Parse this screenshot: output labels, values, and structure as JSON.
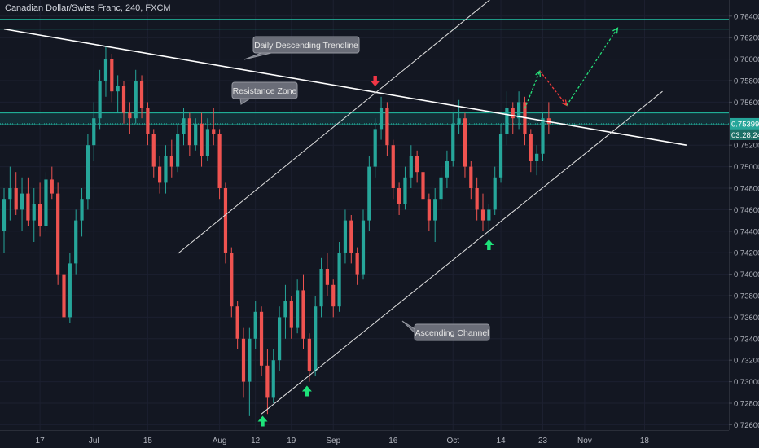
{
  "chart_data": {
    "type": "candlestick",
    "title": "Canadian Dollar/Swiss Franc, 240, FXCM",
    "y_ticks": [
      "0.76400",
      "0.76200",
      "0.76000",
      "0.75800",
      "0.75600",
      "0.75200",
      "0.75000",
      "0.74800",
      "0.74600",
      "0.74400",
      "0.74200",
      "0.74000",
      "0.73800",
      "0.73600",
      "0.73400",
      "0.73200",
      "0.73000",
      "0.72800",
      "0.72600"
    ],
    "ylim": [
      0.7255,
      0.7655
    ],
    "x_ticks": [
      {
        "label": "17",
        "index": 6
      },
      {
        "label": "Jul",
        "index": 15
      },
      {
        "label": "15",
        "index": 24
      },
      {
        "label": "Aug",
        "index": 36
      },
      {
        "label": "12",
        "index": 42
      },
      {
        "label": "19",
        "index": 48
      },
      {
        "label": "Sep",
        "index": 55
      },
      {
        "label": "16",
        "index": 65
      },
      {
        "label": "Oct",
        "index": 75
      },
      {
        "label": "14",
        "index": 83
      },
      {
        "label": "23",
        "index": 90
      },
      {
        "label": "Nov",
        "index": 97
      },
      {
        "label": "18",
        "index": 107
      }
    ],
    "current_price": {
      "value": 0.75399,
      "label": "0.75399",
      "countdown": "03:28:24"
    },
    "resistance_zone": {
      "low": 0.7539,
      "high": 0.755
    },
    "horizontal_levels": [
      0.7637,
      0.7628
    ],
    "annotations": {
      "descending_trendline": "Daily Descending Trendline",
      "resistance_zone": "Resistance Zone",
      "ascending_channel": "Ascending Channel"
    },
    "descending_trendline": [
      {
        "index": 0,
        "price": 0.7628
      },
      {
        "index": 114,
        "price": 0.752
      }
    ],
    "channel_lower": [
      {
        "index": 43,
        "price": 0.727
      },
      {
        "index": 110,
        "price": 0.757
      }
    ],
    "channel_upper": [
      {
        "index": 29,
        "price": 0.7419
      },
      {
        "index": 82,
        "price": 0.7659
      }
    ],
    "projection_up1": [
      {
        "index": 87,
        "price": 0.7554
      },
      {
        "index": 89.5,
        "price": 0.7589
      }
    ],
    "projection_down": [
      {
        "index": 89.5,
        "price": 0.7589
      },
      {
        "index": 94,
        "price": 0.7557
      }
    ],
    "projection_up2": [
      {
        "index": 94,
        "price": 0.7557
      },
      {
        "index": 102.5,
        "price": 0.7629
      }
    ],
    "markers": [
      {
        "type": "down",
        "index": 62,
        "price": 0.7577
      },
      {
        "type": "up",
        "index": 43.2,
        "price": 0.7266
      },
      {
        "type": "up",
        "index": 50.6,
        "price": 0.7294
      },
      {
        "type": "up",
        "index": 81,
        "price": 0.743
      }
    ],
    "series": [
      {
        "o": 0.744,
        "h": 0.748,
        "l": 0.742,
        "c": 0.747
      },
      {
        "o": 0.747,
        "h": 0.75,
        "l": 0.745,
        "c": 0.748
      },
      {
        "o": 0.748,
        "h": 0.7495,
        "l": 0.7455,
        "c": 0.746
      },
      {
        "o": 0.746,
        "h": 0.749,
        "l": 0.744,
        "c": 0.7475
      },
      {
        "o": 0.7475,
        "h": 0.749,
        "l": 0.7445,
        "c": 0.745
      },
      {
        "o": 0.745,
        "h": 0.748,
        "l": 0.743,
        "c": 0.7465
      },
      {
        "o": 0.7465,
        "h": 0.7485,
        "l": 0.7435,
        "c": 0.7445
      },
      {
        "o": 0.7445,
        "h": 0.7495,
        "l": 0.744,
        "c": 0.7488
      },
      {
        "o": 0.7488,
        "h": 0.75,
        "l": 0.747,
        "c": 0.7475
      },
      {
        "o": 0.7475,
        "h": 0.7485,
        "l": 0.739,
        "c": 0.74
      },
      {
        "o": 0.74,
        "h": 0.741,
        "l": 0.7352,
        "c": 0.736
      },
      {
        "o": 0.736,
        "h": 0.742,
        "l": 0.7355,
        "c": 0.741
      },
      {
        "o": 0.741,
        "h": 0.746,
        "l": 0.74,
        "c": 0.745
      },
      {
        "o": 0.745,
        "h": 0.748,
        "l": 0.7435,
        "c": 0.747
      },
      {
        "o": 0.747,
        "h": 0.753,
        "l": 0.746,
        "c": 0.752
      },
      {
        "o": 0.752,
        "h": 0.756,
        "l": 0.7505,
        "c": 0.7545
      },
      {
        "o": 0.7545,
        "h": 0.759,
        "l": 0.7535,
        "c": 0.758
      },
      {
        "o": 0.758,
        "h": 0.7612,
        "l": 0.7565,
        "c": 0.76
      },
      {
        "o": 0.76,
        "h": 0.7605,
        "l": 0.756,
        "c": 0.757
      },
      {
        "o": 0.757,
        "h": 0.7585,
        "l": 0.755,
        "c": 0.7575
      },
      {
        "o": 0.7575,
        "h": 0.758,
        "l": 0.754,
        "c": 0.755
      },
      {
        "o": 0.755,
        "h": 0.756,
        "l": 0.753,
        "c": 0.7545
      },
      {
        "o": 0.7545,
        "h": 0.759,
        "l": 0.754,
        "c": 0.758
      },
      {
        "o": 0.758,
        "h": 0.7585,
        "l": 0.7545,
        "c": 0.7555
      },
      {
        "o": 0.7555,
        "h": 0.756,
        "l": 0.752,
        "c": 0.753
      },
      {
        "o": 0.753,
        "h": 0.7535,
        "l": 0.749,
        "c": 0.75
      },
      {
        "o": 0.75,
        "h": 0.751,
        "l": 0.7475,
        "c": 0.7485
      },
      {
        "o": 0.7485,
        "h": 0.752,
        "l": 0.7475,
        "c": 0.751
      },
      {
        "o": 0.751,
        "h": 0.7525,
        "l": 0.749,
        "c": 0.75
      },
      {
        "o": 0.75,
        "h": 0.754,
        "l": 0.7495,
        "c": 0.753
      },
      {
        "o": 0.753,
        "h": 0.7555,
        "l": 0.752,
        "c": 0.7545
      },
      {
        "o": 0.7545,
        "h": 0.755,
        "l": 0.751,
        "c": 0.752
      },
      {
        "o": 0.752,
        "h": 0.7545,
        "l": 0.7515,
        "c": 0.754
      },
      {
        "o": 0.754,
        "h": 0.755,
        "l": 0.75,
        "c": 0.751
      },
      {
        "o": 0.751,
        "h": 0.7545,
        "l": 0.7505,
        "c": 0.7535
      },
      {
        "o": 0.7535,
        "h": 0.7555,
        "l": 0.752,
        "c": 0.753
      },
      {
        "o": 0.753,
        "h": 0.7535,
        "l": 0.747,
        "c": 0.748
      },
      {
        "o": 0.748,
        "h": 0.7485,
        "l": 0.741,
        "c": 0.742
      },
      {
        "o": 0.742,
        "h": 0.7425,
        "l": 0.736,
        "c": 0.737
      },
      {
        "o": 0.737,
        "h": 0.7375,
        "l": 0.733,
        "c": 0.734
      },
      {
        "o": 0.734,
        "h": 0.735,
        "l": 0.7285,
        "c": 0.73
      },
      {
        "o": 0.73,
        "h": 0.735,
        "l": 0.7268,
        "c": 0.734
      },
      {
        "o": 0.734,
        "h": 0.7375,
        "l": 0.733,
        "c": 0.7365
      },
      {
        "o": 0.7365,
        "h": 0.737,
        "l": 0.7305,
        "c": 0.7315
      },
      {
        "o": 0.7315,
        "h": 0.733,
        "l": 0.727,
        "c": 0.7285
      },
      {
        "o": 0.7285,
        "h": 0.733,
        "l": 0.728,
        "c": 0.732
      },
      {
        "o": 0.732,
        "h": 0.737,
        "l": 0.731,
        "c": 0.736
      },
      {
        "o": 0.736,
        "h": 0.739,
        "l": 0.734,
        "c": 0.7375
      },
      {
        "o": 0.7375,
        "h": 0.738,
        "l": 0.734,
        "c": 0.735
      },
      {
        "o": 0.735,
        "h": 0.7395,
        "l": 0.7345,
        "c": 0.7385
      },
      {
        "o": 0.7385,
        "h": 0.74,
        "l": 0.733,
        "c": 0.734
      },
      {
        "o": 0.734,
        "h": 0.7345,
        "l": 0.73,
        "c": 0.731
      },
      {
        "o": 0.731,
        "h": 0.738,
        "l": 0.7305,
        "c": 0.737
      },
      {
        "o": 0.737,
        "h": 0.7415,
        "l": 0.736,
        "c": 0.7405
      },
      {
        "o": 0.7405,
        "h": 0.742,
        "l": 0.738,
        "c": 0.739
      },
      {
        "o": 0.739,
        "h": 0.7395,
        "l": 0.736,
        "c": 0.737
      },
      {
        "o": 0.737,
        "h": 0.743,
        "l": 0.7365,
        "c": 0.742
      },
      {
        "o": 0.742,
        "h": 0.746,
        "l": 0.741,
        "c": 0.745
      },
      {
        "o": 0.745,
        "h": 0.7455,
        "l": 0.741,
        "c": 0.742
      },
      {
        "o": 0.742,
        "h": 0.7425,
        "l": 0.739,
        "c": 0.74
      },
      {
        "o": 0.74,
        "h": 0.746,
        "l": 0.7395,
        "c": 0.745
      },
      {
        "o": 0.745,
        "h": 0.751,
        "l": 0.744,
        "c": 0.75
      },
      {
        "o": 0.75,
        "h": 0.7545,
        "l": 0.749,
        "c": 0.7535
      },
      {
        "o": 0.7535,
        "h": 0.7565,
        "l": 0.7525,
        "c": 0.7555
      },
      {
        "o": 0.7555,
        "h": 0.756,
        "l": 0.751,
        "c": 0.752
      },
      {
        "o": 0.752,
        "h": 0.7525,
        "l": 0.747,
        "c": 0.748
      },
      {
        "o": 0.748,
        "h": 0.7485,
        "l": 0.7455,
        "c": 0.7465
      },
      {
        "o": 0.7465,
        "h": 0.75,
        "l": 0.746,
        "c": 0.749
      },
      {
        "o": 0.749,
        "h": 0.752,
        "l": 0.748,
        "c": 0.751
      },
      {
        "o": 0.751,
        "h": 0.7515,
        "l": 0.7485,
        "c": 0.7495
      },
      {
        "o": 0.7495,
        "h": 0.75,
        "l": 0.746,
        "c": 0.747
      },
      {
        "o": 0.747,
        "h": 0.7475,
        "l": 0.744,
        "c": 0.745
      },
      {
        "o": 0.745,
        "h": 0.748,
        "l": 0.743,
        "c": 0.747
      },
      {
        "o": 0.747,
        "h": 0.75,
        "l": 0.746,
        "c": 0.749
      },
      {
        "o": 0.749,
        "h": 0.7515,
        "l": 0.748,
        "c": 0.7505
      },
      {
        "o": 0.7505,
        "h": 0.755,
        "l": 0.75,
        "c": 0.754
      },
      {
        "o": 0.754,
        "h": 0.7562,
        "l": 0.753,
        "c": 0.7545
      },
      {
        "o": 0.7545,
        "h": 0.755,
        "l": 0.749,
        "c": 0.75
      },
      {
        "o": 0.75,
        "h": 0.7505,
        "l": 0.747,
        "c": 0.748
      },
      {
        "o": 0.748,
        "h": 0.749,
        "l": 0.745,
        "c": 0.746
      },
      {
        "o": 0.746,
        "h": 0.7475,
        "l": 0.744,
        "c": 0.745
      },
      {
        "o": 0.745,
        "h": 0.7465,
        "l": 0.7436,
        "c": 0.746
      },
      {
        "o": 0.746,
        "h": 0.75,
        "l": 0.7455,
        "c": 0.749
      },
      {
        "o": 0.749,
        "h": 0.754,
        "l": 0.7485,
        "c": 0.753
      },
      {
        "o": 0.753,
        "h": 0.757,
        "l": 0.752,
        "c": 0.7555
      },
      {
        "o": 0.7555,
        "h": 0.756,
        "l": 0.753,
        "c": 0.7545
      },
      {
        "o": 0.7545,
        "h": 0.757,
        "l": 0.7535,
        "c": 0.756
      },
      {
        "o": 0.756,
        "h": 0.7565,
        "l": 0.752,
        "c": 0.753
      },
      {
        "o": 0.753,
        "h": 0.7535,
        "l": 0.7495,
        "c": 0.7505
      },
      {
        "o": 0.7505,
        "h": 0.752,
        "l": 0.7492,
        "c": 0.7512
      },
      {
        "o": 0.7512,
        "h": 0.755,
        "l": 0.7505,
        "c": 0.7545
      },
      {
        "o": 0.7545,
        "h": 0.756,
        "l": 0.753,
        "c": 0.754
      }
    ]
  }
}
